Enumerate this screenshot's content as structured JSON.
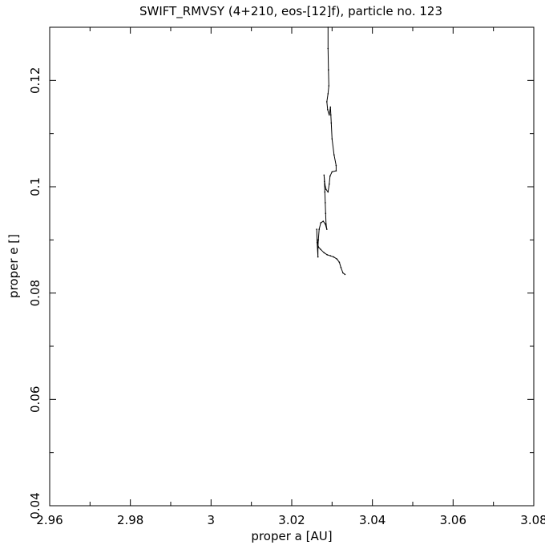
{
  "chart_data": {
    "type": "line",
    "title": "SWIFT_RMVSY (4+210, eos-[12]f), particle no. 123",
    "xlabel": "proper a [AU]",
    "ylabel": "proper e []",
    "xlim": [
      2.96,
      3.08
    ],
    "ylim": [
      0.04,
      0.13
    ],
    "xticks": [
      2.96,
      2.98,
      3.0,
      3.02,
      3.04,
      3.06,
      3.08
    ],
    "xtick_labels": [
      "2.96",
      "2.98",
      "3",
      "3.02",
      "3.04",
      "3.06",
      "3.08"
    ],
    "yticks": [
      0.04,
      0.06,
      0.08,
      0.1,
      0.12
    ],
    "ytick_labels": [
      "0.04",
      "0.06",
      "0.08",
      "0.1",
      "0.12"
    ],
    "grid": false,
    "series": [
      {
        "points": [
          [
            3.029,
            0.13
          ],
          [
            3.029,
            0.126
          ],
          [
            3.0291,
            0.122
          ],
          [
            3.0292,
            0.119
          ],
          [
            3.029,
            0.1175
          ],
          [
            3.0287,
            0.116
          ],
          [
            3.0289,
            0.1145
          ],
          [
            3.0293,
            0.1135
          ],
          [
            3.0296,
            0.115
          ],
          [
            3.0297,
            0.1135
          ],
          [
            3.0298,
            0.112
          ],
          [
            3.03,
            0.109
          ],
          [
            3.0305,
            0.106
          ],
          [
            3.031,
            0.104
          ],
          [
            3.031,
            0.103
          ],
          [
            3.03,
            0.1028
          ],
          [
            3.0295,
            0.102
          ],
          [
            3.0293,
            0.1005
          ],
          [
            3.029,
            0.099
          ],
          [
            3.0285,
            0.0995
          ],
          [
            3.0282,
            0.1005
          ],
          [
            3.028,
            0.1022
          ],
          [
            3.0281,
            0.101
          ],
          [
            3.0282,
            0.099
          ],
          [
            3.0283,
            0.097
          ],
          [
            3.0284,
            0.095
          ],
          [
            3.0285,
            0.093
          ],
          [
            3.0287,
            0.092
          ],
          [
            3.0283,
            0.093
          ],
          [
            3.0278,
            0.0935
          ],
          [
            3.0272,
            0.0932
          ],
          [
            3.0268,
            0.092
          ],
          [
            3.0266,
            0.09
          ],
          [
            3.0265,
            0.0885
          ],
          [
            3.0265,
            0.0868
          ],
          [
            3.0263,
            0.0895
          ],
          [
            3.0262,
            0.092
          ],
          [
            3.0263,
            0.09
          ],
          [
            3.0266,
            0.0887
          ],
          [
            3.0272,
            0.0882
          ],
          [
            3.028,
            0.0876
          ],
          [
            3.0288,
            0.0872
          ],
          [
            3.0296,
            0.087
          ],
          [
            3.0304,
            0.0868
          ],
          [
            3.0312,
            0.0864
          ],
          [
            3.0318,
            0.0858
          ],
          [
            3.0322,
            0.0848
          ],
          [
            3.0327,
            0.0838
          ],
          [
            3.0332,
            0.0835
          ]
        ]
      }
    ]
  }
}
